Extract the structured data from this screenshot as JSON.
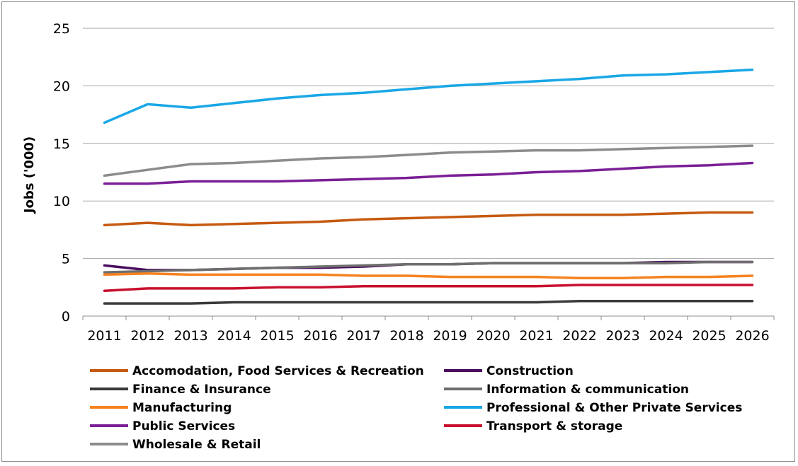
{
  "chart_data": {
    "type": "line",
    "title": "",
    "xlabel": "",
    "ylabel": "Jobs ('000)",
    "ylim": [
      0,
      25
    ],
    "yticks": [
      0,
      5,
      10,
      15,
      20,
      25
    ],
    "grid": "horizontal",
    "legend_position": "bottom",
    "categories": [
      "2011",
      "2012",
      "2013",
      "2014",
      "2015",
      "2016",
      "2017",
      "2018",
      "2019",
      "2020",
      "2021",
      "2022",
      "2023",
      "2024",
      "2025",
      "2026"
    ],
    "series": [
      {
        "name": "Accomodation, Food Services & Recreation",
        "color": "#c55a11",
        "values": [
          7.9,
          8.1,
          7.9,
          8.0,
          8.1,
          8.2,
          8.4,
          8.5,
          8.6,
          8.7,
          8.8,
          8.8,
          8.8,
          8.9,
          9.0,
          9.0
        ]
      },
      {
        "name": "Construction",
        "color": "#4b0d5e",
        "values": [
          4.4,
          4.0,
          4.0,
          4.1,
          4.2,
          4.2,
          4.3,
          4.5,
          4.5,
          4.6,
          4.6,
          4.6,
          4.6,
          4.7,
          4.7,
          4.7
        ]
      },
      {
        "name": "Finance & Insurance",
        "color": "#3a3a3a",
        "values": [
          1.1,
          1.1,
          1.1,
          1.2,
          1.2,
          1.2,
          1.2,
          1.2,
          1.2,
          1.2,
          1.2,
          1.3,
          1.3,
          1.3,
          1.3,
          1.3
        ]
      },
      {
        "name": "Information & communication",
        "color": "#6e6e6e",
        "values": [
          3.8,
          3.9,
          4.0,
          4.1,
          4.2,
          4.3,
          4.4,
          4.5,
          4.5,
          4.6,
          4.6,
          4.6,
          4.6,
          4.6,
          4.7,
          4.7
        ]
      },
      {
        "name": "Manufacturing",
        "color": "#f58220",
        "values": [
          3.6,
          3.7,
          3.6,
          3.6,
          3.6,
          3.6,
          3.5,
          3.5,
          3.4,
          3.4,
          3.4,
          3.3,
          3.3,
          3.4,
          3.4,
          3.5
        ]
      },
      {
        "name": "Professional & Other Private Services",
        "color": "#1aa7e6",
        "values": [
          16.8,
          18.4,
          18.1,
          18.5,
          18.9,
          19.2,
          19.4,
          19.7,
          20.0,
          20.2,
          20.4,
          20.6,
          20.9,
          21.0,
          21.2,
          21.4
        ]
      },
      {
        "name": "Public Services",
        "color": "#7b1f96",
        "values": [
          11.5,
          11.5,
          11.7,
          11.7,
          11.7,
          11.8,
          11.9,
          12.0,
          12.2,
          12.3,
          12.5,
          12.6,
          12.8,
          13.0,
          13.1,
          13.3
        ]
      },
      {
        "name": "Transport & storage",
        "color": "#c8102e",
        "values": [
          2.2,
          2.4,
          2.4,
          2.4,
          2.5,
          2.5,
          2.6,
          2.6,
          2.6,
          2.6,
          2.6,
          2.7,
          2.7,
          2.7,
          2.7,
          2.7
        ]
      },
      {
        "name": "Wholesale & Retail",
        "color": "#8c8c8c",
        "values": [
          12.2,
          12.7,
          13.2,
          13.3,
          13.5,
          13.7,
          13.8,
          14.0,
          14.2,
          14.3,
          14.4,
          14.4,
          14.5,
          14.6,
          14.7,
          14.8
        ]
      }
    ]
  }
}
